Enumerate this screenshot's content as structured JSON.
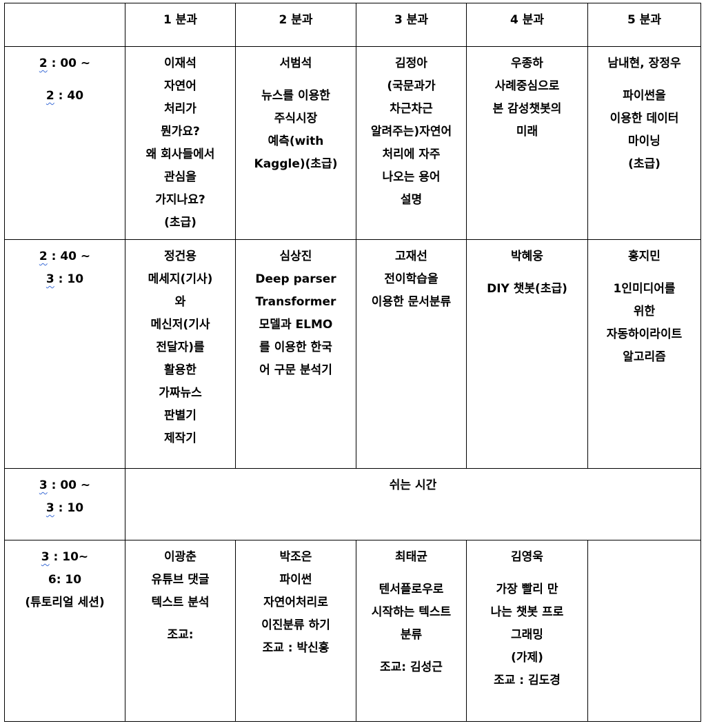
{
  "header": {
    "corner": "",
    "tracks": [
      "1 분과",
      "2 분과",
      "3 분과",
      "4 분과",
      "5 분과"
    ]
  },
  "rows": [
    {
      "time": {
        "start_hour": "2",
        "start_rest": " : 00 ~",
        "end_hour": "2",
        "end_rest": " : 40"
      },
      "cells": [
        [
          "이재석",
          "자연어",
          "처리가",
          "뭔가요?",
          "왜 회사들에서",
          "관심을",
          "가지나요?",
          "(초급)"
        ],
        [
          "서범석",
          "뉴스를 이용한",
          "주식시장",
          "예측(with",
          "Kaggle)(초급)"
        ],
        [
          "김정아",
          "(국문과가",
          "차근차근",
          "알려주는)자연어",
          "처리에 자주",
          "나오는 용어",
          "설명"
        ],
        [
          "우종하",
          "사례중심으로",
          "본 감성챗봇의",
          "미래"
        ],
        [
          "남내현, 장정우",
          "파이썬을",
          "이용한 데이터",
          "마이닝",
          "(초급)"
        ]
      ]
    },
    {
      "time": {
        "start_hour": "2",
        "start_rest": " : 40 ~",
        "end_hour": "3",
        "end_rest": " : 10"
      },
      "cells": [
        [
          "정건용",
          "메세지(기사)",
          "와",
          "메신저(기사",
          "전달자)를",
          "활용한",
          "가짜뉴스",
          "판별기",
          "제작기"
        ],
        [
          "심상진",
          "Deep parser",
          "Transformer",
          "모델과 ELMO",
          "를 이용한 한국",
          "어 구문 분석기"
        ],
        [
          "고재선",
          "전이학습을",
          "이용한 문서분류"
        ],
        [
          "박혜웅",
          "DIY 챗봇(초급)"
        ],
        [
          "홍지민",
          "1인미디어를",
          "위한",
          "자동하이라이트",
          "알고리즘"
        ]
      ]
    },
    {
      "time": {
        "start_hour": "3",
        "start_rest": " : 00 ~",
        "end_hour": "3",
        "end_rest": " : 10"
      },
      "break_label": "쉬는 시간"
    },
    {
      "time": {
        "start_hour": "3",
        "start_rest": " : 10~",
        "line2": "6: 10",
        "line3": "(튜토리얼 세션)"
      },
      "cells": [
        [
          "이광춘",
          "유튜브 댓글",
          "텍스트 분석",
          "조교:"
        ],
        [
          "박조은",
          "파이썬",
          "자연어처리로",
          "이진분류 하기",
          "조교 : 박신홍"
        ],
        [
          "최태균",
          "텐서플로우로",
          "시작하는 텍스트",
          "분류",
          "조교: 김성근"
        ],
        [
          "김영욱",
          "가장 빨리 만",
          "나는 챗봇 프로",
          "그래밍",
          "(가제)",
          "조교 : 김도경"
        ],
        []
      ]
    }
  ]
}
